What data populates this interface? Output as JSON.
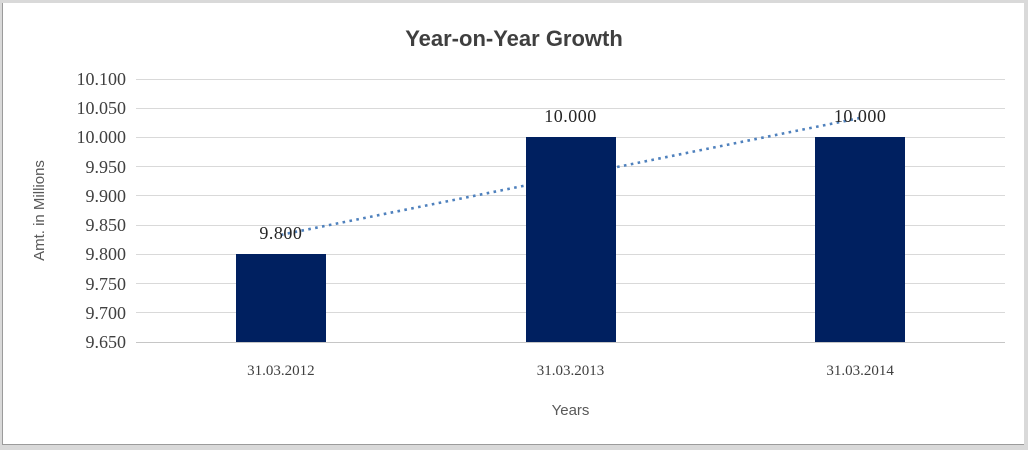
{
  "frame": {
    "outer_color": "#d9d9d9",
    "edge_color": "#9b9b9b",
    "background": "#ffffff"
  },
  "chart_data": {
    "type": "bar",
    "title": "Year-on-Year Growth",
    "xlabel": "Years",
    "ylabel": "Amt. in Millions",
    "categories": [
      "31.03.2012",
      "31.03.2013",
      "31.03.2014"
    ],
    "values": [
      9.8,
      10.0,
      10.0
    ],
    "data_labels": [
      "9.800",
      "10.000",
      "10.000"
    ],
    "y_ticks": [
      "10.100",
      "10.050",
      "10.000",
      "9.950",
      "9.900",
      "9.850",
      "9.800",
      "9.750",
      "9.700",
      "9.650"
    ],
    "ylim": [
      9.65,
      10.1
    ],
    "grid": true,
    "legend": "none",
    "trendline": {
      "type": "linear",
      "style": "dotted"
    },
    "colors": {
      "bar": "#002060",
      "trendline": "#4f81bd",
      "gridline": "#d9d9d9",
      "axis_line": "#c6c6c6",
      "title_text": "#3f3f3f",
      "tick_text": "#404040",
      "data_label_text": "#262626",
      "axis_title_text": "#595959"
    }
  }
}
